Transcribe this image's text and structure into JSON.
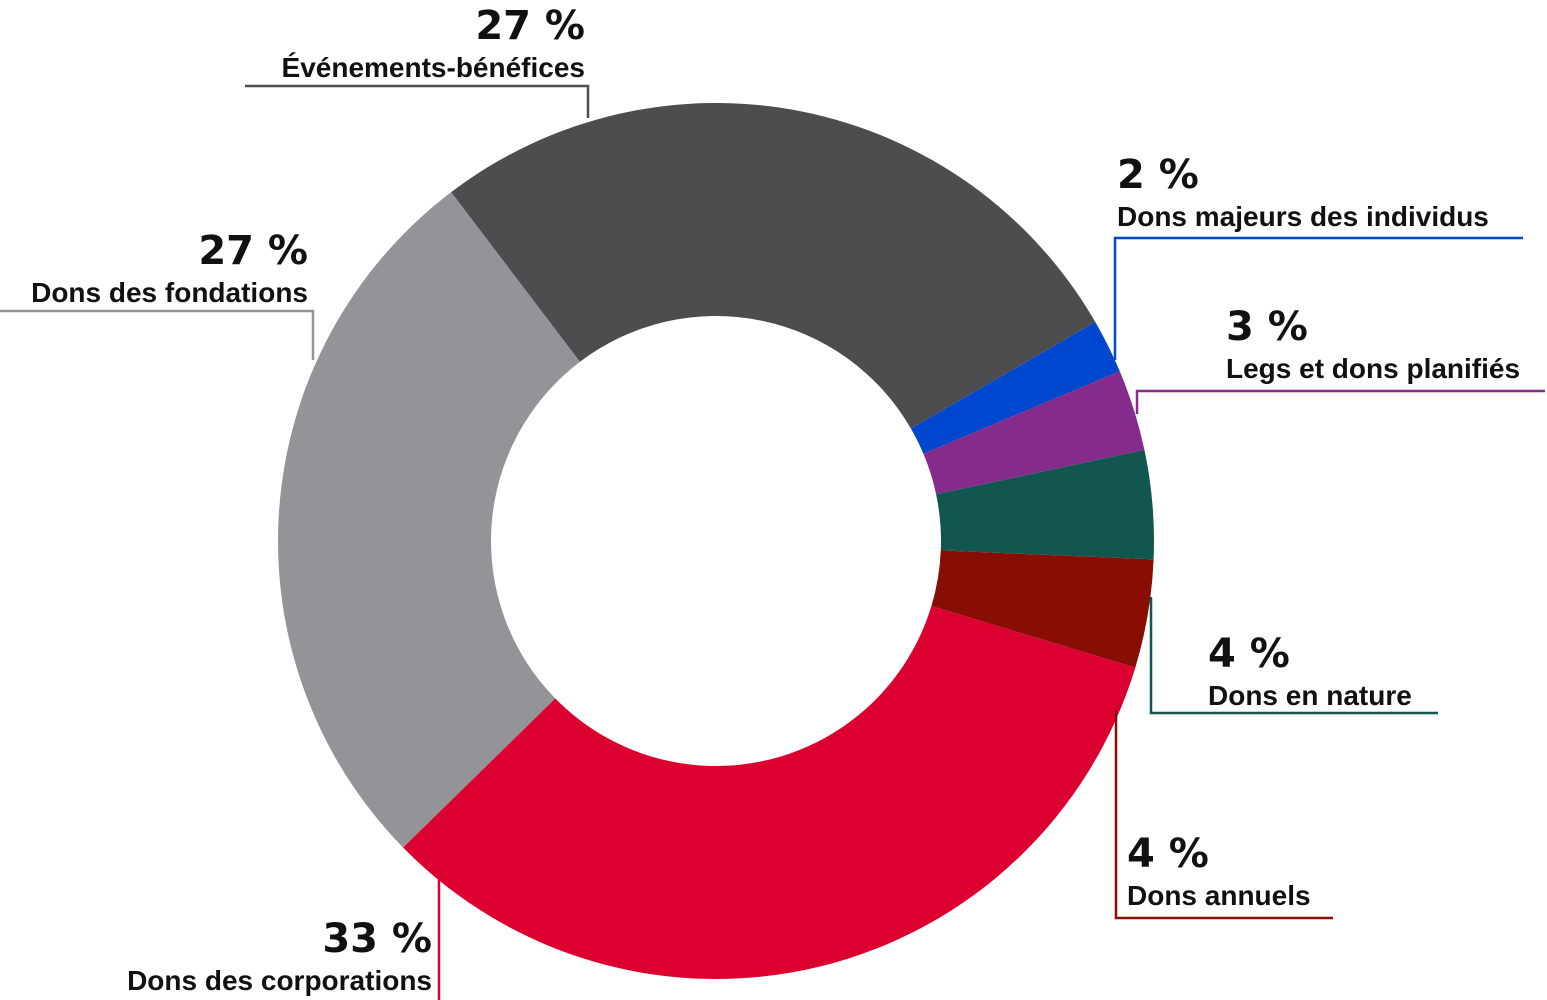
{
  "chart_data": {
    "type": "pie",
    "donut": true,
    "start_angle_deg": -30,
    "direction": "clockwise",
    "slices": [
      {
        "label": "Dons majeurs des individus",
        "value_label": "2 %",
        "value": 2,
        "color": "#0047CF"
      },
      {
        "label": "Legs et dons planifiés",
        "value_label": "3 %",
        "value": 3,
        "color": "#852B8C"
      },
      {
        "label": "Dons en nature",
        "value_label": "4 %",
        "value": 4,
        "color": "#12574F"
      },
      {
        "label": "Dons annuels",
        "value_label": "4 %",
        "value": 4,
        "color": "#880E04"
      },
      {
        "label": "Dons des corporations",
        "value_label": "33 %",
        "value": 33,
        "color": "#DC0031"
      },
      {
        "label": "Dons des fondations",
        "value_label": "27 %",
        "value": 27,
        "color": "#939497"
      },
      {
        "label": "Événements-bénéfices",
        "value_label": "27 %",
        "value": 27,
        "color": "#4D4D4F"
      }
    ]
  }
}
